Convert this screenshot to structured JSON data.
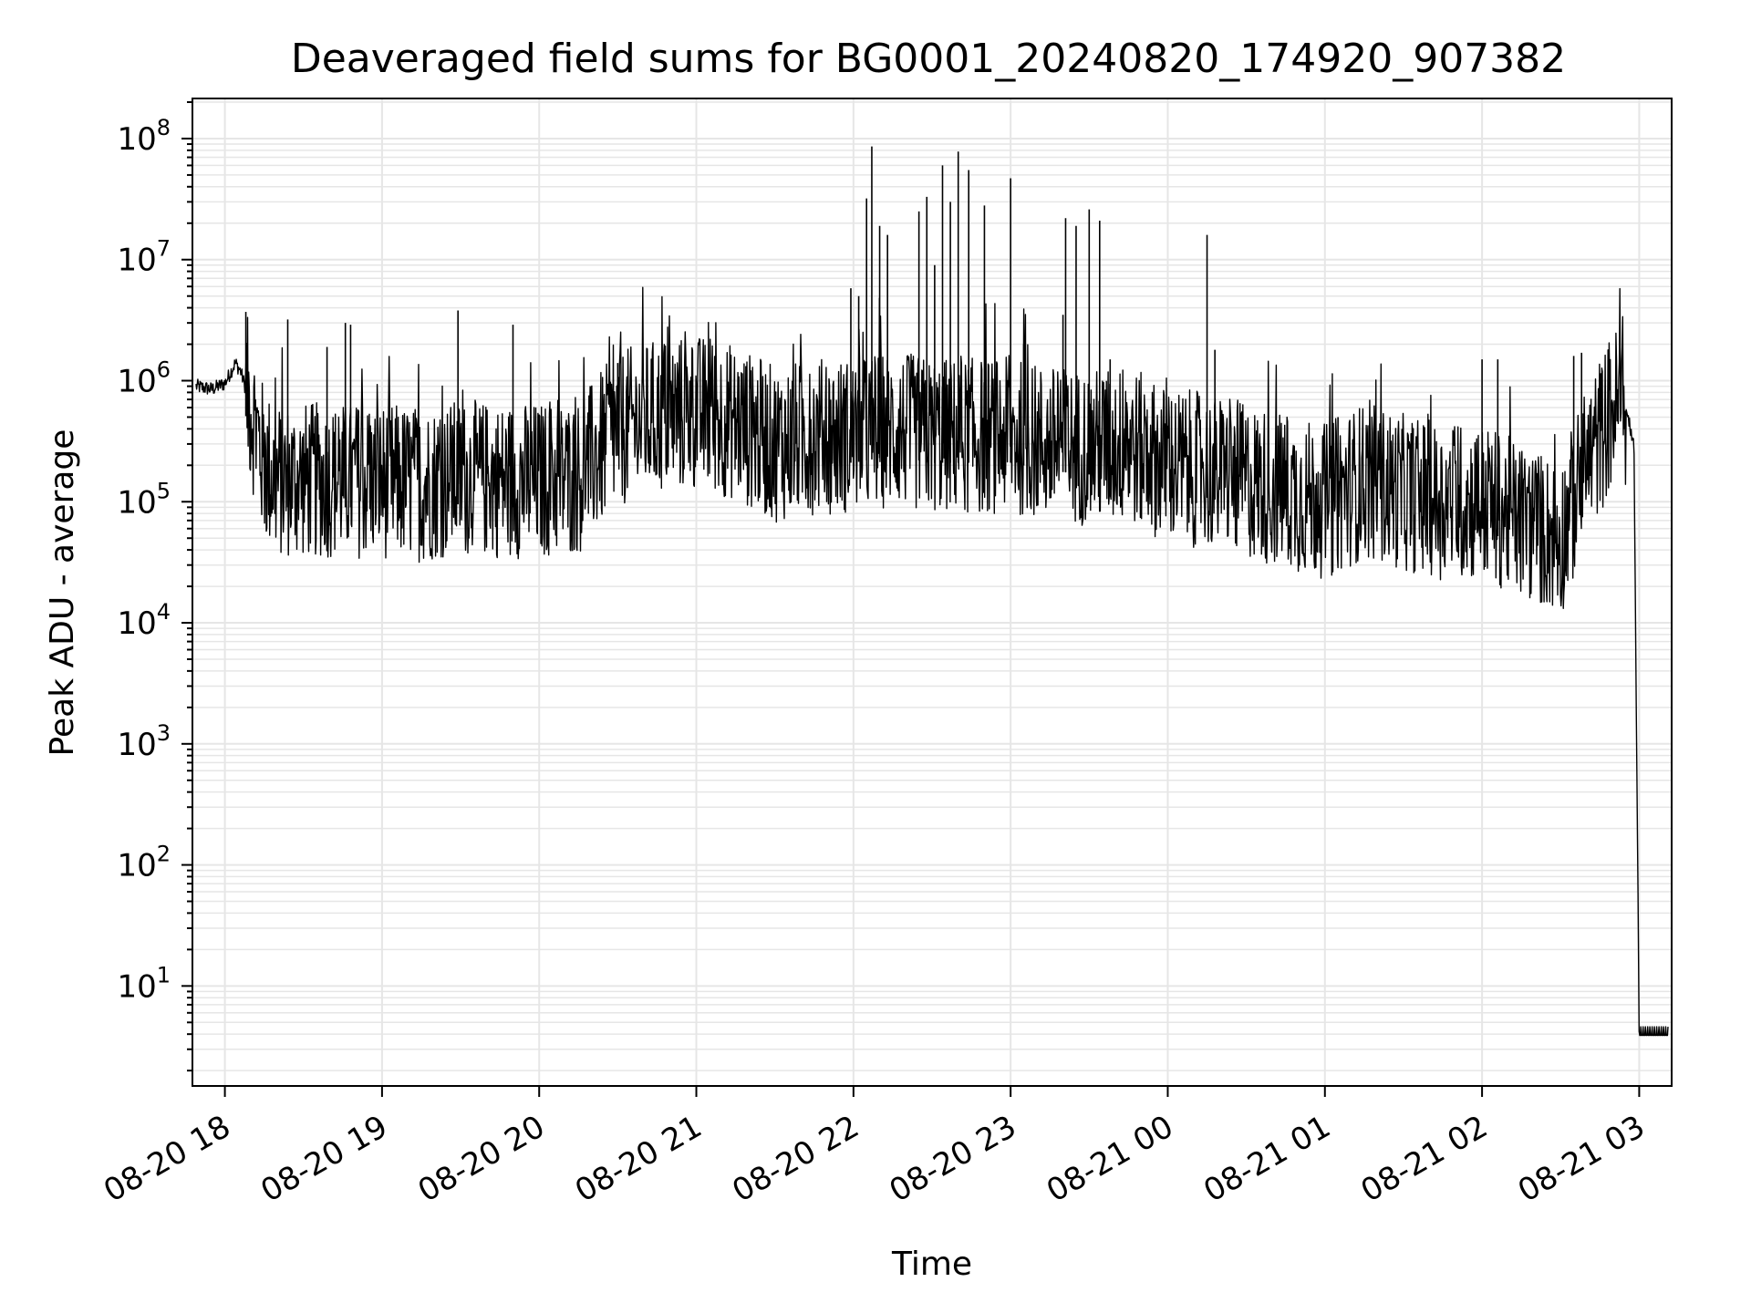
{
  "chart_data": {
    "type": "line",
    "title": "Deaveraged field sums for BG0001_20240820_174920_907382",
    "xlabel": "Time",
    "ylabel": "Peak ADU - average",
    "yscale": "log",
    "ylim": [
      1.6,
      200000000
    ],
    "xlim": [
      "2024-08-20 17:49",
      "2024-08-21 03:11"
    ],
    "grid": true,
    "line_color": "#000000",
    "grid_color": "#e6e6e6",
    "x_ticks": [
      "2024-08-20 18:00",
      "2024-08-20 19:00",
      "2024-08-20 20:00",
      "2024-08-20 21:00",
      "2024-08-20 22:00",
      "2024-08-20 23:00",
      "2024-08-21 00:00",
      "2024-08-21 01:00",
      "2024-08-21 02:00",
      "2024-08-21 03:00"
    ],
    "x_tick_labels": [
      "08-20 18",
      "08-20 19",
      "08-20 20",
      "08-20 21",
      "08-20 22",
      "08-20 23",
      "08-21 00",
      "08-21 01",
      "08-21 02",
      "08-21 03"
    ],
    "y_ticks": [
      {
        "value": 10,
        "base": "10",
        "exp": "1"
      },
      {
        "value": 100,
        "base": "10",
        "exp": "2"
      },
      {
        "value": 1000,
        "base": "10",
        "exp": "3"
      },
      {
        "value": 10000,
        "base": "10",
        "exp": "4"
      },
      {
        "value": 100000,
        "base": "10",
        "exp": "5"
      },
      {
        "value": 1000000,
        "base": "10",
        "exp": "6"
      },
      {
        "value": 10000000,
        "base": "10",
        "exp": "7"
      },
      {
        "value": 100000000,
        "base": "10",
        "exp": "8"
      }
    ],
    "series": [
      {
        "x": [
          "2024-08-20 17:49",
          "2024-08-20 17:55",
          "2024-08-20 18:00",
          "2024-08-20 18:04",
          "2024-08-20 18:06",
          "2024-08-20 18:10",
          "2024-08-20 18:15",
          "2024-08-20 18:20",
          "2024-08-20 18:30",
          "2024-08-20 18:45",
          "2024-08-20 19:00",
          "2024-08-20 19:15",
          "2024-08-20 19:30",
          "2024-08-20 19:45",
          "2024-08-20 20:00",
          "2024-08-20 20:15",
          "2024-08-20 20:30",
          "2024-08-20 20:45",
          "2024-08-20 21:00",
          "2024-08-20 21:15",
          "2024-08-20 21:30",
          "2024-08-20 21:45",
          "2024-08-20 22:00",
          "2024-08-20 22:15",
          "2024-08-20 22:30",
          "2024-08-20 22:45",
          "2024-08-20 23:00",
          "2024-08-20 23:15",
          "2024-08-20 23:30",
          "2024-08-20 23:45",
          "2024-08-21 00:00",
          "2024-08-21 00:15",
          "2024-08-21 00:30",
          "2024-08-21 00:45",
          "2024-08-21 01:00",
          "2024-08-21 01:15",
          "2024-08-21 01:30",
          "2024-08-21 01:45",
          "2024-08-21 02:00",
          "2024-08-21 02:15",
          "2024-08-21 02:30",
          "2024-08-21 02:40",
          "2024-08-21 02:50",
          "2024-08-21 02:54",
          "2024-08-21 02:58",
          "2024-08-21 03:00",
          "2024-08-21 03:11"
        ],
        "y": [
          900000,
          850000,
          950000,
          1400000,
          1200000,
          600000,
          200000,
          150000,
          150000,
          150000,
          150000,
          140000,
          160000,
          150000,
          150000,
          160000,
          400000,
          500000,
          550000,
          450000,
          300000,
          350000,
          350000,
          400000,
          350000,
          350000,
          350000,
          300000,
          280000,
          300000,
          200000,
          180000,
          150000,
          120000,
          100000,
          150000,
          120000,
          100000,
          100000,
          70000,
          50000,
          200000,
          600000,
          700000,
          300000,
          4,
          4
        ]
      }
    ],
    "spikes": [
      {
        "x": "2024-08-20 18:08",
        "y": 3700000
      },
      {
        "x": "2024-08-20 18:24",
        "y": 3200000
      },
      {
        "x": "2024-08-20 18:39",
        "y": 1900000
      },
      {
        "x": "2024-08-20 18:46",
        "y": 3000000
      },
      {
        "x": "2024-08-20 18:48",
        "y": 2900000
      },
      {
        "x": "2024-08-20 19:29",
        "y": 3800000
      },
      {
        "x": "2024-08-20 19:50",
        "y": 2900000
      },
      {
        "x": "2024-08-20 20:30",
        "y": 1400000
      },
      {
        "x": "2024-08-20 21:59",
        "y": 5800000
      },
      {
        "x": "2024-08-20 22:02",
        "y": 5000000
      },
      {
        "x": "2024-08-20 22:05",
        "y": 32000000
      },
      {
        "x": "2024-08-20 22:07",
        "y": 86000000
      },
      {
        "x": "2024-08-20 22:10",
        "y": 19000000
      },
      {
        "x": "2024-08-20 22:13",
        "y": 16000000
      },
      {
        "x": "2024-08-20 22:25",
        "y": 25000000
      },
      {
        "x": "2024-08-20 22:28",
        "y": 33000000
      },
      {
        "x": "2024-08-20 22:31",
        "y": 9000000
      },
      {
        "x": "2024-08-20 22:34",
        "y": 60000000
      },
      {
        "x": "2024-08-20 22:37",
        "y": 30000000
      },
      {
        "x": "2024-08-20 22:40",
        "y": 78000000
      },
      {
        "x": "2024-08-20 22:44",
        "y": 55000000
      },
      {
        "x": "2024-08-20 22:50",
        "y": 28000000
      },
      {
        "x": "2024-08-20 23:00",
        "y": 47000000
      },
      {
        "x": "2024-08-20 23:05",
        "y": 2000000
      },
      {
        "x": "2024-08-20 23:20",
        "y": 3500000
      },
      {
        "x": "2024-08-20 23:21",
        "y": 22000000
      },
      {
        "x": "2024-08-20 23:25",
        "y": 19000000
      },
      {
        "x": "2024-08-20 23:30",
        "y": 26000000
      },
      {
        "x": "2024-08-20 23:34",
        "y": 21000000
      },
      {
        "x": "2024-08-20 23:38",
        "y": 1500000
      },
      {
        "x": "2024-08-21 00:15",
        "y": 16000000
      },
      {
        "x": "2024-08-21 00:18",
        "y": 1800000
      },
      {
        "x": "2024-08-21 01:05",
        "y": 500000
      },
      {
        "x": "2024-08-21 02:00",
        "y": 1500000
      },
      {
        "x": "2024-08-21 02:06",
        "y": 1500000
      },
      {
        "x": "2024-08-21 02:35",
        "y": 1600000
      },
      {
        "x": "2024-08-21 02:38",
        "y": 1700000
      }
    ]
  }
}
